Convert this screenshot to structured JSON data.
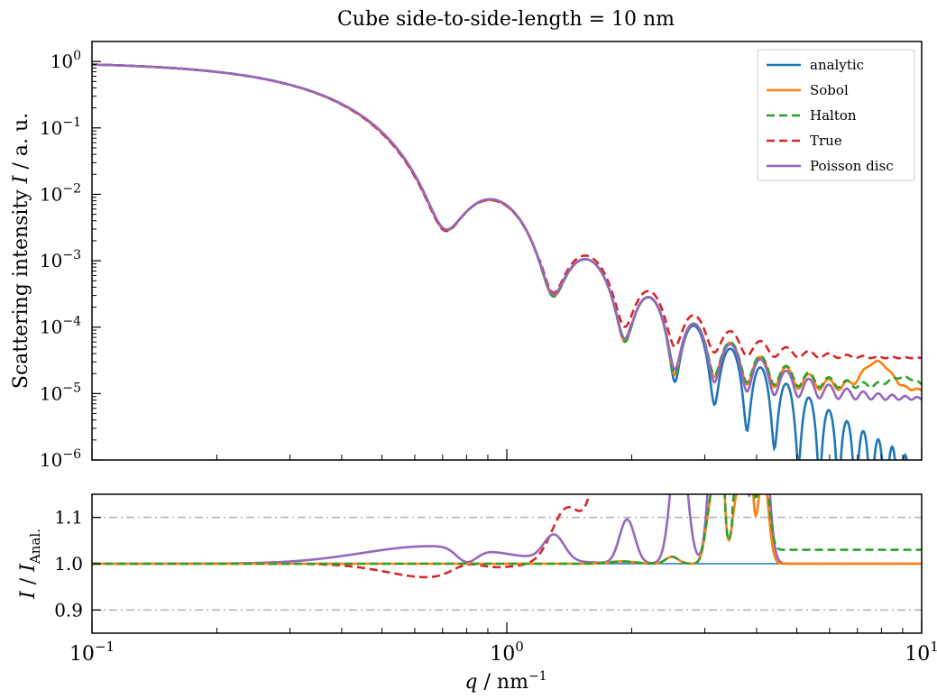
{
  "chart_data": [
    {
      "type": "line",
      "title": "Cube side-to-side-length = 10 nm",
      "ylabel": "Scattering intensity I / a. u.",
      "xscale": "log",
      "yscale": "log",
      "xlim": [
        0.1,
        10
      ],
      "ylim": [
        1e-06,
        2
      ],
      "legend_position": "top-right",
      "yticks": [
        {
          "value": 1,
          "label": "10^0",
          "base": "10",
          "exp": "0"
        },
        {
          "value": 0.1,
          "label": "10^-1",
          "base": "10",
          "exp": "−1"
        },
        {
          "value": 0.01,
          "label": "10^-2",
          "base": "10",
          "exp": "−2"
        },
        {
          "value": 0.001,
          "label": "10^-3",
          "base": "10",
          "exp": "−3"
        },
        {
          "value": 0.0001,
          "label": "10^-4",
          "base": "10",
          "exp": "−4"
        },
        {
          "value": 1e-05,
          "label": "10^-5",
          "base": "10",
          "exp": "−5"
        },
        {
          "value": 1e-06,
          "label": "10^-6",
          "base": "10",
          "exp": "−6"
        }
      ],
      "series": [
        {
          "name": "analytic",
          "color": "#1f77b4",
          "style": "solid"
        },
        {
          "name": "Sobol",
          "color": "#ff7f0e",
          "style": "solid"
        },
        {
          "name": "Halton",
          "color": "#2ca02c",
          "style": "dashed"
        },
        {
          "name": "True",
          "color": "#d62728",
          "style": "dashed"
        },
        {
          "name": "Poisson disc",
          "color": "#9467bd",
          "style": "solid"
        }
      ],
      "notes_units": "y values in arbitrary units, x in nm^-1 (shared with lower panel)"
    },
    {
      "type": "line",
      "xlabel": "q / nm^-1",
      "ylabel": "I / I_Anal.",
      "xscale": "log",
      "xlim": [
        0.1,
        10
      ],
      "ylim": [
        0.85,
        1.15
      ],
      "reference_lines": [
        0.9,
        1.1
      ],
      "xticks": [
        {
          "value": 0.1,
          "base": "10",
          "exp": "−1"
        },
        {
          "value": 1,
          "base": "10",
          "exp": "0"
        },
        {
          "value": 10,
          "base": "10",
          "exp": "1"
        }
      ],
      "yticks": [
        {
          "value": 1.1,
          "label": "1.1"
        },
        {
          "value": 1.0,
          "label": "1.0"
        },
        {
          "value": 0.9,
          "label": "0.9"
        }
      ]
    }
  ],
  "labels": {
    "title": "Cube side-to-side-length = 10 nm",
    "upper_ylabel_text": "Scattering intensity ",
    "upper_ylabel_var": "I",
    "upper_ylabel_unit": " / a. u.",
    "lower_ylabel_var": "I",
    "lower_ylabel_sep": " / ",
    "lower_ylabel_var2": "I",
    "lower_ylabel_sub": "Anal.",
    "xlabel_var": "q",
    "xlabel_sep": " / nm",
    "xlabel_exp": "−1"
  }
}
